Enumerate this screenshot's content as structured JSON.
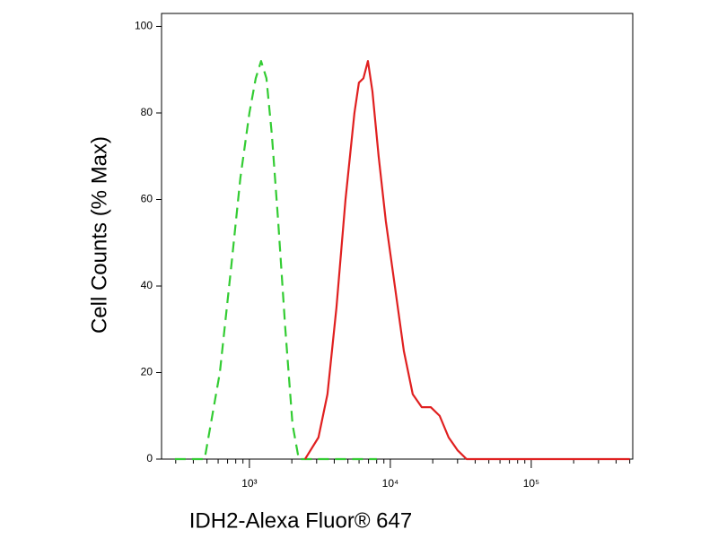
{
  "chart_data": {
    "type": "line",
    "xlabel": "IDH2-Alexa Fluor® 647",
    "ylabel": "Cell Counts (% Max)",
    "xscale": "log",
    "xlim": [
      238,
      525000
    ],
    "ylim": [
      0,
      103
    ],
    "xticks": [
      {
        "value": 1000,
        "label": "10³"
      },
      {
        "value": 10000,
        "label": "10⁴"
      },
      {
        "value": 100000,
        "label": "10⁵"
      }
    ],
    "xminorticks": [
      300,
      400,
      500,
      600,
      700,
      800,
      900,
      2000,
      3000,
      4000,
      5000,
      6000,
      7000,
      8000,
      9000,
      20000,
      30000,
      40000,
      50000,
      60000,
      70000,
      80000,
      90000,
      200000,
      300000,
      400000,
      500000
    ],
    "yticks": [
      0,
      20,
      40,
      60,
      80,
      100
    ],
    "series": [
      {
        "color": "#33cc33",
        "dash": true,
        "x": [
          296,
          481,
          617,
          746,
          863,
          1000,
          1109,
          1210,
          1321,
          1443,
          1600,
          1799,
          2023,
          2241,
          8017
        ],
        "values": [
          0,
          0,
          20,
          45,
          65,
          80,
          88,
          92,
          88,
          75,
          55,
          30,
          8,
          0,
          0
        ]
      },
      {
        "color": "#e02020",
        "dash": false,
        "x": [
          2483,
          3090,
          3580,
          4146,
          4808,
          5563,
          5985,
          6442,
          6934,
          7464,
          8260,
          9290,
          10765,
          12470,
          14420,
          16710,
          19360,
          22390,
          25940,
          30060,
          34750,
          46630,
          500000
        ],
        "values": [
          0,
          5,
          15,
          35,
          60,
          80,
          87,
          88,
          92,
          85,
          70,
          55,
          40,
          25,
          15,
          12,
          12,
          10,
          5,
          2,
          0,
          0,
          0
        ]
      }
    ]
  }
}
